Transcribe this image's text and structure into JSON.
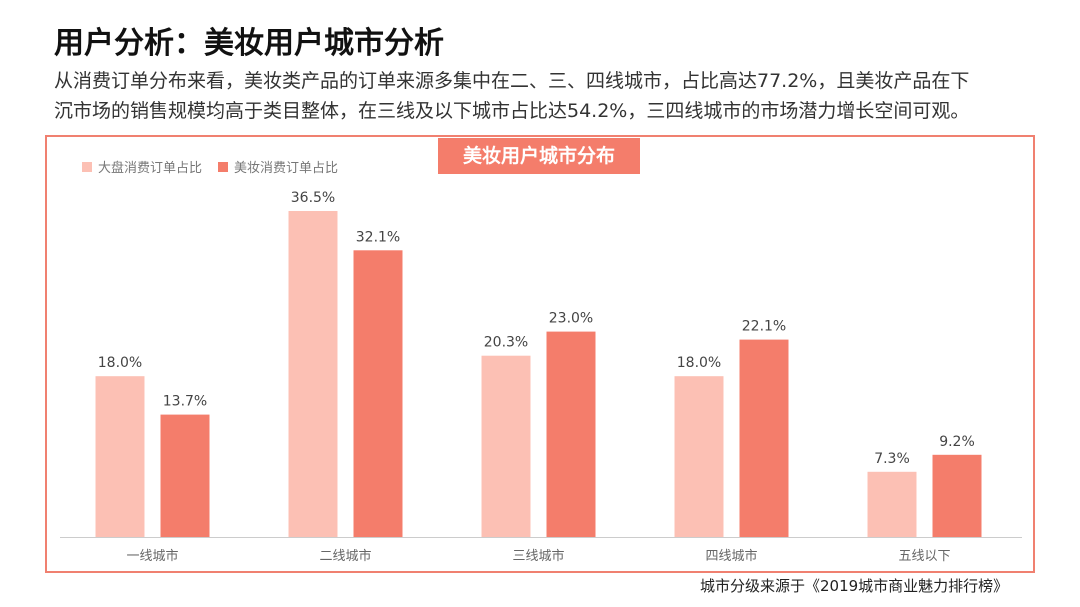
{
  "header": {
    "title": "用户分析：美妆用户城市分析",
    "desc_line1": "从消费订单分布来看，美妆类产品的订单来源多集中在二、三、四线城市，占比高达77.2%，且美妆产品在下",
    "desc_line2": "沉市场的销售规模均高于类目整体，在三线及以下城市占比达54.2%，三四线城市的市场潜力增长空间可观。"
  },
  "panel": {
    "banner": "美妆用户城市分布"
  },
  "footer": {
    "source": "城市分级来源于《2019城市商业魅力排行榜》"
  },
  "colors": {
    "series_overall": "#fcc0b4",
    "series_beauty": "#f47d6b",
    "frame": "#f08070",
    "axis": "#cccccc"
  },
  "chart_data": {
    "type": "bar",
    "title": "美妆用户城市分布",
    "categories": [
      "一线城市",
      "二线城市",
      "三线城市",
      "四线城市",
      "五线以下"
    ],
    "series": [
      {
        "name": "大盘消费订单占比",
        "values": [
          18.0,
          36.5,
          20.3,
          18.0,
          7.3
        ],
        "labels": [
          "18.0%",
          "36.5%",
          "20.3%",
          "18.0%",
          "7.3%"
        ]
      },
      {
        "name": "美妆消费订单占比",
        "values": [
          13.7,
          32.1,
          23.0,
          22.1,
          9.2
        ],
        "labels": [
          "13.7%",
          "32.1%",
          "23.0%",
          "22.1%",
          "9.2%"
        ]
      }
    ],
    "xlabel": "",
    "ylabel": "",
    "ylim": [
      0,
      36.5
    ],
    "legend_position": "top-left",
    "grid": false
  }
}
